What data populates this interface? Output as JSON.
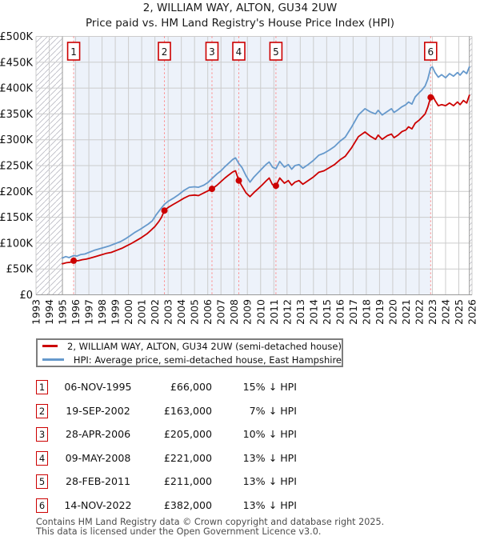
{
  "header": {
    "title": "2, WILLIAM WAY, ALTON, GU34 2UW",
    "subtitle": "Price paid vs. HM Land Registry's House Price Index (HPI)"
  },
  "chart_data": {
    "type": "line",
    "x_range": [
      1993,
      2026
    ],
    "y_range": [
      0,
      500000
    ],
    "y_tick_step": 50000,
    "y_tick_labels": [
      "£0",
      "£50K",
      "£100K",
      "£150K",
      "£200K",
      "£250K",
      "£300K",
      "£350K",
      "£400K",
      "£450K",
      "£500K"
    ],
    "x_tick_labels": [
      "1993",
      "1994",
      "1995",
      "1996",
      "1997",
      "1998",
      "1999",
      "2000",
      "2001",
      "2002",
      "2003",
      "2004",
      "2005",
      "2006",
      "2007",
      "2008",
      "2009",
      "2010",
      "2011",
      "2012",
      "2013",
      "2014",
      "2015",
      "2016",
      "2017",
      "2018",
      "2019",
      "2020",
      "2021",
      "2022",
      "2023",
      "2024",
      "2025",
      "2026"
    ],
    "grid": true,
    "legend_position": "below",
    "hatch_left_until_year": 1995.0,
    "hatch_right_from_year": 2025.8,
    "shade_span_years": [
      1995.85,
      2022.87
    ],
    "colors": {
      "price_line": "#cc0000",
      "hpi_line": "#6699cc",
      "shade": "#edf2fa",
      "grid": "#cccccc",
      "dashed_sale_line": "#ff8080",
      "boundary": "#999999",
      "hatch": "#b9b9c2",
      "marker_box_border": "#cc0000"
    },
    "sale_markers": [
      {
        "label": "1",
        "year": 1995.85,
        "value": 66000
      },
      {
        "label": "2",
        "year": 2002.72,
        "value": 163000
      },
      {
        "label": "3",
        "year": 2006.32,
        "value": 205000
      },
      {
        "label": "4",
        "year": 2008.35,
        "value": 221000
      },
      {
        "label": "5",
        "year": 2011.16,
        "value": 211000
      },
      {
        "label": "6",
        "year": 2022.87,
        "value": 382000
      }
    ],
    "series": [
      {
        "name": "2, WILLIAM WAY, ALTON, GU34 2UW (semi-detached house)",
        "color": "#cc0000",
        "points": [
          [
            1995.0,
            60000
          ],
          [
            1995.3,
            62000
          ],
          [
            1995.6,
            63000
          ],
          [
            1995.85,
            66000
          ],
          [
            1996.2,
            66000
          ],
          [
            1996.5,
            68000
          ],
          [
            1996.8,
            69000
          ],
          [
            1997.1,
            71000
          ],
          [
            1997.5,
            74000
          ],
          [
            1997.9,
            77000
          ],
          [
            1998.3,
            80000
          ],
          [
            1998.7,
            82000
          ],
          [
            1999.1,
            86000
          ],
          [
            1999.5,
            90000
          ],
          [
            1999.8,
            94000
          ],
          [
            2000.2,
            99000
          ],
          [
            2000.6,
            105000
          ],
          [
            2001.0,
            111000
          ],
          [
            2001.4,
            118000
          ],
          [
            2001.7,
            125000
          ],
          [
            2002.0,
            132000
          ],
          [
            2002.3,
            142000
          ],
          [
            2002.5,
            150000
          ],
          [
            2002.72,
            163000
          ],
          [
            2003.0,
            169000
          ],
          [
            2003.4,
            175000
          ],
          [
            2003.8,
            181000
          ],
          [
            2004.2,
            187000
          ],
          [
            2004.6,
            192000
          ],
          [
            2005.0,
            193000
          ],
          [
            2005.3,
            192000
          ],
          [
            2005.7,
            197000
          ],
          [
            2006.0,
            201000
          ],
          [
            2006.32,
            205000
          ],
          [
            2006.7,
            212000
          ],
          [
            2007.0,
            219000
          ],
          [
            2007.3,
            226000
          ],
          [
            2007.6,
            232000
          ],
          [
            2007.9,
            238000
          ],
          [
            2008.1,
            240000
          ],
          [
            2008.35,
            221000
          ],
          [
            2008.6,
            210000
          ],
          [
            2008.9,
            197000
          ],
          [
            2009.2,
            190000
          ],
          [
            2009.5,
            198000
          ],
          [
            2009.8,
            205000
          ],
          [
            2010.1,
            212000
          ],
          [
            2010.4,
            220000
          ],
          [
            2010.65,
            226000
          ],
          [
            2010.9,
            213000
          ],
          [
            2011.16,
            211000
          ],
          [
            2011.45,
            226000
          ],
          [
            2011.8,
            216000
          ],
          [
            2012.1,
            221000
          ],
          [
            2012.35,
            212000
          ],
          [
            2012.6,
            218000
          ],
          [
            2012.9,
            221000
          ],
          [
            2013.2,
            214000
          ],
          [
            2013.6,
            221000
          ],
          [
            2014.0,
            228000
          ],
          [
            2014.4,
            237000
          ],
          [
            2014.8,
            240000
          ],
          [
            2015.2,
            246000
          ],
          [
            2015.6,
            252000
          ],
          [
            2016.0,
            261000
          ],
          [
            2016.4,
            268000
          ],
          [
            2016.9,
            285000
          ],
          [
            2017.4,
            306000
          ],
          [
            2017.9,
            315000
          ],
          [
            2018.3,
            307000
          ],
          [
            2018.7,
            301000
          ],
          [
            2018.9,
            309000
          ],
          [
            2019.2,
            301000
          ],
          [
            2019.6,
            308000
          ],
          [
            2019.9,
            311000
          ],
          [
            2020.1,
            304000
          ],
          [
            2020.4,
            309000
          ],
          [
            2020.7,
            316000
          ],
          [
            2021.0,
            319000
          ],
          [
            2021.2,
            325000
          ],
          [
            2021.45,
            321000
          ],
          [
            2021.7,
            332000
          ],
          [
            2022.0,
            338000
          ],
          [
            2022.2,
            343000
          ],
          [
            2022.45,
            350000
          ],
          [
            2022.65,
            363000
          ],
          [
            2022.87,
            382000
          ],
          [
            2023.05,
            384000
          ],
          [
            2023.2,
            376000
          ],
          [
            2023.45,
            366000
          ],
          [
            2023.7,
            368000
          ],
          [
            2024.0,
            366000
          ],
          [
            2024.3,
            371000
          ],
          [
            2024.6,
            366000
          ],
          [
            2024.9,
            373000
          ],
          [
            2025.1,
            368000
          ],
          [
            2025.35,
            376000
          ],
          [
            2025.6,
            371000
          ],
          [
            2025.8,
            386000
          ]
        ]
      },
      {
        "name": "HPI: Average price, semi-detached house, East Hampshire",
        "color": "#6699cc",
        "points": [
          [
            1995.0,
            71000
          ],
          [
            1995.25,
            74000
          ],
          [
            1995.5,
            72000
          ],
          [
            1995.85,
            76000
          ],
          [
            1996.1,
            75000
          ],
          [
            1996.4,
            78000
          ],
          [
            1996.7,
            79000
          ],
          [
            1997.0,
            82000
          ],
          [
            1997.4,
            86000
          ],
          [
            1997.8,
            89000
          ],
          [
            1998.2,
            92000
          ],
          [
            1998.6,
            95000
          ],
          [
            1999.0,
            99000
          ],
          [
            1999.4,
            103000
          ],
          [
            1999.75,
            108000
          ],
          [
            2000.1,
            114000
          ],
          [
            2000.5,
            121000
          ],
          [
            2000.9,
            127000
          ],
          [
            2001.2,
            132000
          ],
          [
            2001.5,
            137000
          ],
          [
            2001.8,
            143000
          ],
          [
            2002.1,
            155000
          ],
          [
            2002.4,
            165000
          ],
          [
            2002.72,
            175000
          ],
          [
            2003.0,
            181000
          ],
          [
            2003.4,
            187000
          ],
          [
            2003.8,
            194000
          ],
          [
            2004.2,
            202000
          ],
          [
            2004.6,
            208000
          ],
          [
            2005.0,
            209000
          ],
          [
            2005.3,
            208000
          ],
          [
            2005.7,
            212000
          ],
          [
            2006.0,
            217000
          ],
          [
            2006.32,
            225000
          ],
          [
            2006.7,
            234000
          ],
          [
            2007.0,
            240000
          ],
          [
            2007.3,
            248000
          ],
          [
            2007.6,
            255000
          ],
          [
            2007.9,
            262000
          ],
          [
            2008.1,
            265000
          ],
          [
            2008.35,
            254000
          ],
          [
            2008.6,
            246000
          ],
          [
            2008.9,
            230000
          ],
          [
            2009.2,
            218000
          ],
          [
            2009.5,
            228000
          ],
          [
            2009.8,
            236000
          ],
          [
            2010.1,
            244000
          ],
          [
            2010.4,
            252000
          ],
          [
            2010.65,
            257000
          ],
          [
            2010.9,
            247000
          ],
          [
            2011.16,
            244000
          ],
          [
            2011.45,
            258000
          ],
          [
            2011.8,
            247000
          ],
          [
            2012.1,
            252000
          ],
          [
            2012.35,
            243000
          ],
          [
            2012.6,
            250000
          ],
          [
            2012.9,
            252000
          ],
          [
            2013.2,
            245000
          ],
          [
            2013.6,
            252000
          ],
          [
            2014.0,
            260000
          ],
          [
            2014.4,
            270000
          ],
          [
            2014.8,
            274000
          ],
          [
            2015.2,
            280000
          ],
          [
            2015.6,
            287000
          ],
          [
            2016.0,
            297000
          ],
          [
            2016.4,
            305000
          ],
          [
            2016.9,
            325000
          ],
          [
            2017.4,
            348000
          ],
          [
            2017.9,
            360000
          ],
          [
            2018.3,
            354000
          ],
          [
            2018.7,
            350000
          ],
          [
            2018.9,
            357000
          ],
          [
            2019.2,
            348000
          ],
          [
            2019.6,
            355000
          ],
          [
            2019.9,
            360000
          ],
          [
            2020.1,
            353000
          ],
          [
            2020.4,
            358000
          ],
          [
            2020.7,
            364000
          ],
          [
            2021.0,
            368000
          ],
          [
            2021.2,
            373000
          ],
          [
            2021.45,
            369000
          ],
          [
            2021.7,
            383000
          ],
          [
            2022.0,
            391000
          ],
          [
            2022.2,
            396000
          ],
          [
            2022.45,
            404000
          ],
          [
            2022.65,
            417000
          ],
          [
            2022.87,
            439000
          ],
          [
            2023.0,
            441000
          ],
          [
            2023.2,
            430000
          ],
          [
            2023.45,
            421000
          ],
          [
            2023.7,
            426000
          ],
          [
            2024.0,
            420000
          ],
          [
            2024.3,
            428000
          ],
          [
            2024.6,
            423000
          ],
          [
            2024.9,
            430000
          ],
          [
            2025.1,
            425000
          ],
          [
            2025.35,
            433000
          ],
          [
            2025.6,
            428000
          ],
          [
            2025.8,
            441000
          ]
        ]
      }
    ]
  },
  "legend": {
    "items": [
      {
        "label": "2, WILLIAM WAY, ALTON, GU34 2UW (semi-detached house)",
        "color": "#cc0000"
      },
      {
        "label": "HPI: Average price, semi-detached house, East Hampshire",
        "color": "#6699cc"
      }
    ]
  },
  "sales_table": {
    "rows": [
      {
        "num": "1",
        "date": "06-NOV-1995",
        "price": "£66,000",
        "vs_hpi": "15% ↓ HPI"
      },
      {
        "num": "2",
        "date": "19-SEP-2002",
        "price": "£163,000",
        "vs_hpi": "7% ↓ HPI"
      },
      {
        "num": "3",
        "date": "28-APR-2006",
        "price": "£205,000",
        "vs_hpi": "10% ↓ HPI"
      },
      {
        "num": "4",
        "date": "09-MAY-2008",
        "price": "£221,000",
        "vs_hpi": "13% ↓ HPI"
      },
      {
        "num": "5",
        "date": "28-FEB-2011",
        "price": "£211,000",
        "vs_hpi": "13% ↓ HPI"
      },
      {
        "num": "6",
        "date": "14-NOV-2022",
        "price": "£382,000",
        "vs_hpi": "13% ↓ HPI"
      }
    ]
  },
  "footer": {
    "line1": "Contains HM Land Registry data © Crown copyright and database right 2025.",
    "line2": "This data is licensed under the Open Government Licence v3.0."
  }
}
